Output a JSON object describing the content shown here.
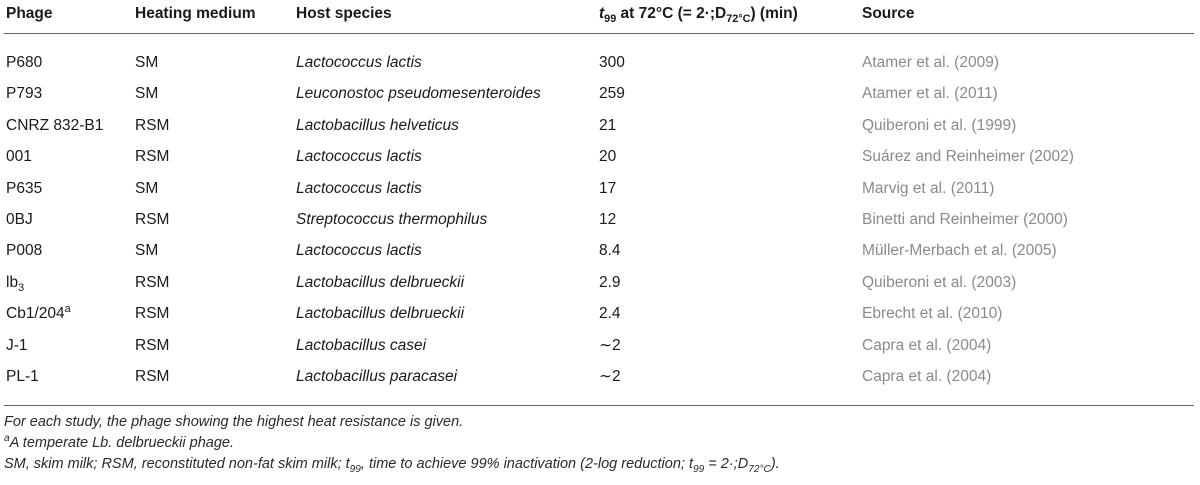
{
  "header": {
    "phage": "Phage",
    "medium": "Heating medium",
    "host": "Host species",
    "t99_main": "t",
    "t99_sub": "99",
    "t99_rest": " at 72°C (= 2·;D",
    "t99_sub2": "72°C",
    "t99_end": ") (min)",
    "source": "Source"
  },
  "rows": [
    {
      "phage": "P680",
      "medium": "SM",
      "host": "Lactococcus lactis",
      "t99": "300",
      "source": "Atamer et al. (2009)"
    },
    {
      "phage": "P793",
      "medium": "SM",
      "host": "Leuconostoc pseudomesenteroides",
      "t99": "259",
      "source": "Atamer et al. (2011)"
    },
    {
      "phage": "CNRZ 832-B1",
      "medium": "RSM",
      "host": "Lactobacillus helveticus",
      "t99": "21",
      "source": "Quiberoni et al. (1999)"
    },
    {
      "phage": "001",
      "medium": "RSM",
      "host": "Lactococcus lactis",
      "t99": "20",
      "source": "Suárez and Reinheimer (2002)"
    },
    {
      "phage": "P635",
      "medium": "SM",
      "host": "Lactococcus lactis",
      "t99": "17",
      "source": "Marvig et al. (2011)"
    },
    {
      "phage": "0BJ",
      "medium": "RSM",
      "host": "Streptococcus thermophilus",
      "t99": "12",
      "source": "Binetti and Reinheimer (2000)"
    },
    {
      "phage": "P008",
      "medium": "SM",
      "host": "Lactococcus lactis",
      "t99": "8.4",
      "source": "Müller-Merbach et al. (2005)"
    },
    {
      "phage": "lb",
      "phage_sub": "3",
      "medium": "RSM",
      "host": "Lactobacillus delbrueckii",
      "t99": "2.9",
      "source": "Quiberoni et al. (2003)"
    },
    {
      "phage": "Cb1/204",
      "phage_sup": "a",
      "medium": "RSM",
      "host": "Lactobacillus delbrueckii",
      "t99": "2.4",
      "source": "Ebrecht et al. (2010)"
    },
    {
      "phage": "J-1",
      "medium": "RSM",
      "host": "Lactobacillus casei",
      "t99": "∼2",
      "source": "Capra et al. (2004)"
    },
    {
      "phage": "PL-1",
      "medium": "RSM",
      "host": "Lactobacillus paracasei",
      "t99": "∼2",
      "source": "Capra et al. (2004)"
    }
  ],
  "notes": {
    "line1": "For each study, the phage showing the highest heat resistance is given.",
    "line2_sup": "a",
    "line2": "A temperate Lb. delbrueckii phage.",
    "line3_a": "SM, skim milk; RSM, reconstituted non-fat skim milk; t",
    "line3_sub1": "99",
    "line3_b": ", time to achieve 99% inactivation (2-log reduction; t",
    "line3_sub2": "99",
    "line3_c": " = 2·;D",
    "line3_sub3": "72°C",
    "line3_d": ")."
  }
}
